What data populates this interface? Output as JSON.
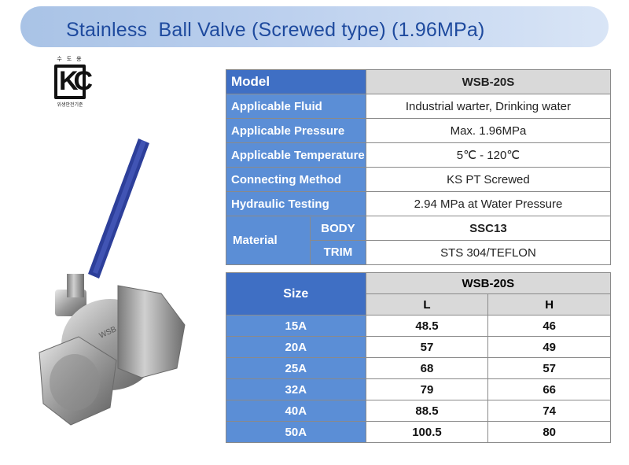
{
  "title": "Stainless  Ball Valve (Screwed type) (1.96MPa)",
  "kc_mark": {
    "top": "수 도 용",
    "logo": "KC",
    "bottom": "위생안전기준"
  },
  "spec": {
    "rows": [
      {
        "label": "Model",
        "value": "WSB-20S"
      },
      {
        "label": "Applicable Fluid",
        "value": "Industrial warter, Drinking water"
      },
      {
        "label": "Applicable Pressure",
        "value": "Max. 1.96MPa"
      },
      {
        "label": "Applicable Temperature",
        "value": "5℃ - 120℃"
      },
      {
        "label": "Connecting Method",
        "value": "KS PT Screwed"
      },
      {
        "label": "Hydraulic Testing",
        "value": "2.94 MPa at Water Pressure"
      }
    ],
    "material": {
      "label": "Material",
      "body_label": "BODY",
      "body_value": "SSC13",
      "trim_label": "TRIM",
      "trim_value": "STS 304/TEFLON"
    }
  },
  "sizes": {
    "model": "WSB-20S",
    "size_label": "Size",
    "col_l": "L",
    "col_h": "H",
    "rows": [
      {
        "size": "15A",
        "l": "48.5",
        "h": "46"
      },
      {
        "size": "20A",
        "l": "57",
        "h": "49"
      },
      {
        "size": "25A",
        "l": "68",
        "h": "57"
      },
      {
        "size": "32A",
        "l": "79",
        "h": "66"
      },
      {
        "size": "40A",
        "l": "88.5",
        "h": "74"
      },
      {
        "size": "50A",
        "l": "100.5",
        "h": "80"
      }
    ]
  },
  "colors": {
    "header_blue": "#3f6fc4",
    "label_blue": "#5b8ed6",
    "title_blue": "#1e4a9e",
    "grey": "#d9d9d9"
  }
}
